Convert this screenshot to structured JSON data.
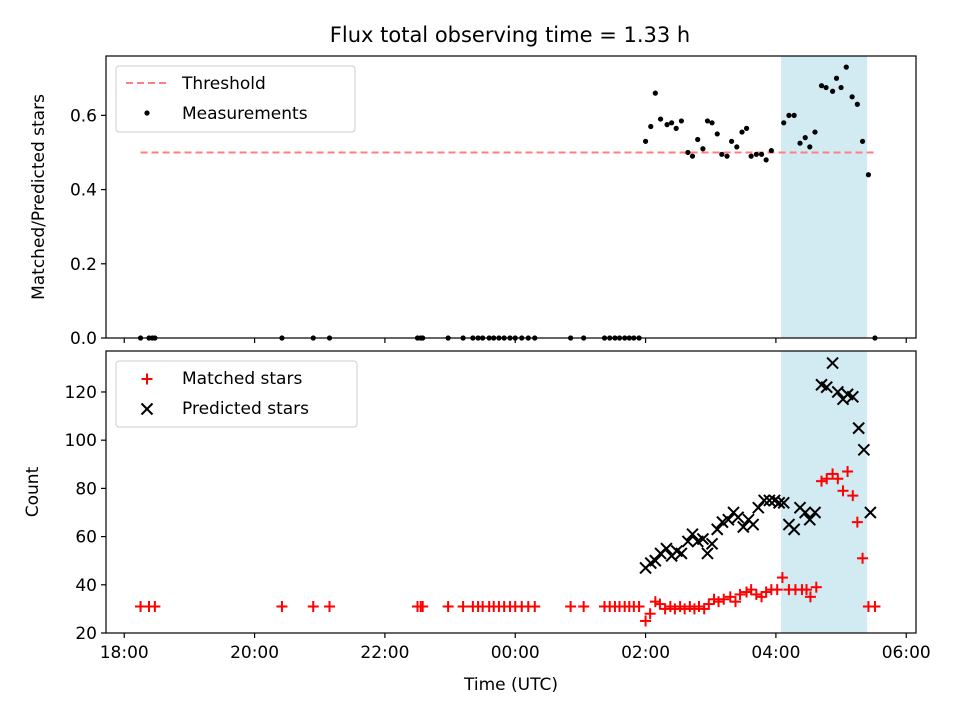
{
  "figure": {
    "title": "Flux total observing time = 1.33 h",
    "highlight_color": "#add8e6",
    "highlight_hours": [
      28.08,
      29.4
    ]
  },
  "chart_data": [
    {
      "type": "scatter",
      "ylabel": "Matched/Predicted stars",
      "xlim": [
        17.72,
        30.15
      ],
      "ylim": [
        0,
        0.76
      ],
      "yticks": [
        0.0,
        0.2,
        0.4,
        0.6
      ],
      "ytick_labels": [
        "0.0",
        "0.2",
        "0.4",
        "0.6"
      ],
      "legend_position": "upper-left",
      "threshold": {
        "name": "Threshold",
        "value": 0.5,
        "x_range": [
          18.25,
          29.55
        ],
        "color": "#ff7f7f",
        "style": "dashed"
      },
      "series": [
        {
          "name": "Measurements",
          "color": "#000000",
          "marker": "dot",
          "points": [
            [
              18.25,
              0
            ],
            [
              18.38,
              0
            ],
            [
              18.43,
              0
            ],
            [
              18.47,
              0
            ],
            [
              20.42,
              0
            ],
            [
              20.9,
              0
            ],
            [
              21.15,
              0
            ],
            [
              22.5,
              0
            ],
            [
              22.55,
              0
            ],
            [
              22.58,
              0
            ],
            [
              22.97,
              0
            ],
            [
              23.2,
              0
            ],
            [
              23.35,
              0
            ],
            [
              23.43,
              0
            ],
            [
              23.5,
              0
            ],
            [
              23.6,
              0
            ],
            [
              23.67,
              0
            ],
            [
              23.75,
              0
            ],
            [
              23.83,
              0
            ],
            [
              23.92,
              0
            ],
            [
              24.0,
              0
            ],
            [
              24.1,
              0
            ],
            [
              24.2,
              0
            ],
            [
              24.3,
              0
            ],
            [
              24.85,
              0
            ],
            [
              25.05,
              0
            ],
            [
              25.37,
              0
            ],
            [
              25.45,
              0
            ],
            [
              25.53,
              0
            ],
            [
              25.6,
              0
            ],
            [
              25.68,
              0
            ],
            [
              25.75,
              0
            ],
            [
              25.82,
              0
            ],
            [
              25.9,
              0
            ],
            [
              26.0,
              0.53
            ],
            [
              26.08,
              0.57
            ],
            [
              26.15,
              0.66
            ],
            [
              26.23,
              0.59
            ],
            [
              26.33,
              0.575
            ],
            [
              26.4,
              0.58
            ],
            [
              26.47,
              0.565
            ],
            [
              26.55,
              0.585
            ],
            [
              26.65,
              0.5
            ],
            [
              26.72,
              0.49
            ],
            [
              26.8,
              0.535
            ],
            [
              26.88,
              0.51
            ],
            [
              26.95,
              0.585
            ],
            [
              27.02,
              0.58
            ],
            [
              27.1,
              0.55
            ],
            [
              27.17,
              0.495
            ],
            [
              27.25,
              0.49
            ],
            [
              27.32,
              0.53
            ],
            [
              27.4,
              0.515
            ],
            [
              27.48,
              0.555
            ],
            [
              27.55,
              0.565
            ],
            [
              27.62,
              0.49
            ],
            [
              27.7,
              0.495
            ],
            [
              27.78,
              0.495
            ],
            [
              27.85,
              0.48
            ],
            [
              27.93,
              0.505
            ],
            [
              28.12,
              0.58
            ],
            [
              28.2,
              0.6
            ],
            [
              28.28,
              0.6
            ],
            [
              28.37,
              0.525
            ],
            [
              28.45,
              0.54
            ],
            [
              28.52,
              0.515
            ],
            [
              28.6,
              0.555
            ],
            [
              28.7,
              0.68
            ],
            [
              28.77,
              0.675
            ],
            [
              28.87,
              0.665
            ],
            [
              28.93,
              0.7
            ],
            [
              29.0,
              0.675
            ],
            [
              29.08,
              0.73
            ],
            [
              29.17,
              0.65
            ],
            [
              29.25,
              0.63
            ],
            [
              29.33,
              0.53
            ],
            [
              29.42,
              0.44
            ],
            [
              29.52,
              0
            ]
          ]
        }
      ]
    },
    {
      "type": "scatter",
      "xlabel": "Time (UTC)",
      "ylabel": "Count",
      "xlim": [
        17.72,
        30.15
      ],
      "ylim": [
        20,
        137
      ],
      "yticks": [
        20,
        40,
        60,
        80,
        100,
        120
      ],
      "ytick_labels": [
        "20",
        "40",
        "60",
        "80",
        "100",
        "120"
      ],
      "xticks": [
        18,
        20,
        22,
        24,
        26,
        28,
        30
      ],
      "xtick_labels": [
        "18:00",
        "20:00",
        "22:00",
        "00:00",
        "02:00",
        "04:00",
        "06:00"
      ],
      "legend_position": "upper-left",
      "series": [
        {
          "name": "Matched stars",
          "color": "#ff0000",
          "marker": "plus",
          "points": [
            [
              18.25,
              31
            ],
            [
              18.38,
              31
            ],
            [
              18.47,
              31
            ],
            [
              20.42,
              31
            ],
            [
              20.9,
              31
            ],
            [
              21.15,
              31
            ],
            [
              22.5,
              31
            ],
            [
              22.55,
              31
            ],
            [
              22.58,
              31
            ],
            [
              22.97,
              31
            ],
            [
              23.2,
              31
            ],
            [
              23.35,
              31
            ],
            [
              23.43,
              31
            ],
            [
              23.5,
              31
            ],
            [
              23.6,
              31
            ],
            [
              23.67,
              31
            ],
            [
              23.75,
              31
            ],
            [
              23.83,
              31
            ],
            [
              23.92,
              31
            ],
            [
              24.0,
              31
            ],
            [
              24.1,
              31
            ],
            [
              24.2,
              31
            ],
            [
              24.3,
              31
            ],
            [
              24.85,
              31
            ],
            [
              25.05,
              31
            ],
            [
              25.37,
              31
            ],
            [
              25.45,
              31
            ],
            [
              25.53,
              31
            ],
            [
              25.6,
              31
            ],
            [
              25.68,
              31
            ],
            [
              25.75,
              31
            ],
            [
              25.82,
              31
            ],
            [
              25.9,
              31
            ],
            [
              26.0,
              25
            ],
            [
              26.07,
              28
            ],
            [
              26.15,
              33
            ],
            [
              26.22,
              32
            ],
            [
              26.3,
              30
            ],
            [
              26.38,
              31
            ],
            [
              26.45,
              30
            ],
            [
              26.53,
              31
            ],
            [
              26.6,
              30
            ],
            [
              26.68,
              31
            ],
            [
              26.75,
              30
            ],
            [
              26.82,
              31
            ],
            [
              26.9,
              30
            ],
            [
              26.97,
              32
            ],
            [
              27.05,
              34
            ],
            [
              27.12,
              33
            ],
            [
              27.2,
              34
            ],
            [
              27.3,
              35
            ],
            [
              27.38,
              33
            ],
            [
              27.45,
              36
            ],
            [
              27.55,
              37
            ],
            [
              27.62,
              38
            ],
            [
              27.7,
              36
            ],
            [
              27.78,
              35
            ],
            [
              27.85,
              37
            ],
            [
              27.93,
              38
            ],
            [
              28.02,
              38
            ],
            [
              28.1,
              43
            ],
            [
              28.2,
              38
            ],
            [
              28.3,
              38
            ],
            [
              28.4,
              38
            ],
            [
              28.47,
              38
            ],
            [
              28.53,
              35
            ],
            [
              28.62,
              39
            ],
            [
              28.7,
              83
            ],
            [
              28.78,
              84
            ],
            [
              28.87,
              86
            ],
            [
              28.95,
              84
            ],
            [
              29.03,
              79
            ],
            [
              29.1,
              87
            ],
            [
              29.18,
              77
            ],
            [
              29.25,
              66
            ],
            [
              29.33,
              51
            ],
            [
              29.42,
              31
            ],
            [
              29.52,
              31
            ]
          ]
        },
        {
          "name": "Predicted stars",
          "color": "#000000",
          "marker": "x",
          "points": [
            [
              26.0,
              47
            ],
            [
              26.08,
              49
            ],
            [
              26.15,
              50
            ],
            [
              26.23,
              53
            ],
            [
              26.32,
              55
            ],
            [
              26.4,
              52
            ],
            [
              26.48,
              54
            ],
            [
              26.55,
              53
            ],
            [
              26.65,
              58
            ],
            [
              26.72,
              61
            ],
            [
              26.8,
              58
            ],
            [
              26.88,
              59
            ],
            [
              26.95,
              53
            ],
            [
              27.02,
              57
            ],
            [
              27.1,
              63
            ],
            [
              27.18,
              66
            ],
            [
              27.27,
              67
            ],
            [
              27.35,
              70
            ],
            [
              27.42,
              68
            ],
            [
              27.5,
              64
            ],
            [
              27.58,
              67
            ],
            [
              27.65,
              65
            ],
            [
              27.73,
              72
            ],
            [
              27.82,
              75
            ],
            [
              27.9,
              75
            ],
            [
              27.98,
              75
            ],
            [
              28.05,
              74
            ],
            [
              28.12,
              74
            ],
            [
              28.2,
              65
            ],
            [
              28.28,
              63
            ],
            [
              28.37,
              72
            ],
            [
              28.45,
              70
            ],
            [
              28.52,
              67
            ],
            [
              28.6,
              70
            ],
            [
              28.7,
              123
            ],
            [
              28.78,
              122
            ],
            [
              28.87,
              132
            ],
            [
              28.95,
              120
            ],
            [
              29.03,
              117
            ],
            [
              29.1,
              119
            ],
            [
              29.18,
              118
            ],
            [
              29.27,
              105
            ],
            [
              29.35,
              96
            ],
            [
              29.45,
              70
            ]
          ]
        }
      ]
    }
  ]
}
